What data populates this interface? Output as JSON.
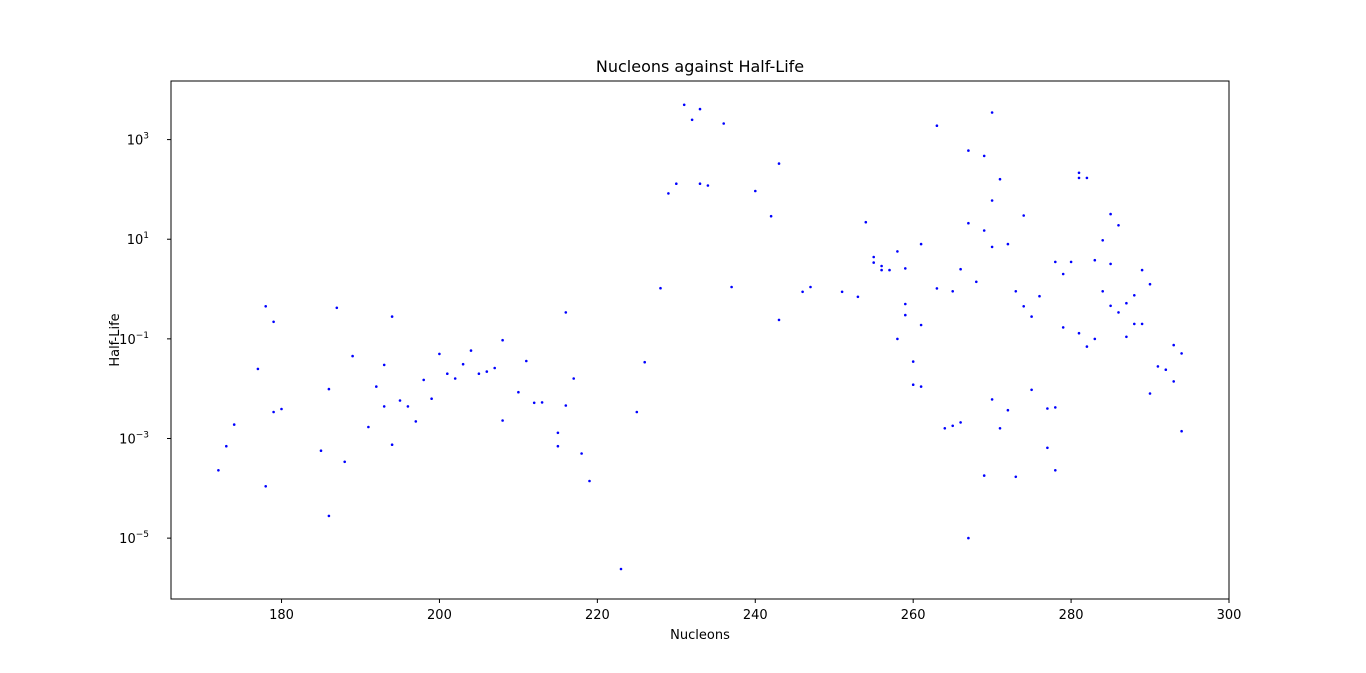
{
  "chart_data": {
    "type": "scatter",
    "title": "Nucleons against Half-Life",
    "xlabel": "Nucleons",
    "ylabel": "Half-Life",
    "xlim": [
      166,
      300
    ],
    "ylim": [
      6e-07,
      15000
    ],
    "yscale": "log",
    "x_ticks": [
      180,
      200,
      220,
      240,
      260,
      280,
      300
    ],
    "y_ticks": [
      {
        "exp": -5,
        "value": 1e-05
      },
      {
        "exp": -3,
        "value": 0.001
      },
      {
        "exp": -1,
        "value": 0.1
      },
      {
        "exp": 1,
        "value": 10
      },
      {
        "exp": 3,
        "value": 1000
      }
    ],
    "grid": false,
    "marker_color": "#0000ff",
    "series": [
      {
        "x": [
          172,
          173,
          174,
          177,
          178,
          178,
          179,
          179,
          180,
          185,
          186,
          186,
          187,
          188,
          189,
          191,
          192,
          193,
          193,
          194,
          194,
          195,
          196,
          197,
          198,
          199,
          200,
          201,
          202,
          203,
          204,
          205,
          206,
          207,
          208,
          208,
          210,
          211,
          212,
          213,
          215,
          215,
          216,
          216,
          217,
          218,
          219,
          223,
          225,
          226,
          228,
          229,
          230,
          231,
          232,
          233,
          233,
          234,
          236,
          237,
          240,
          242,
          243,
          243,
          246,
          247,
          251,
          253,
          254,
          255,
          255,
          256,
          256,
          257,
          258,
          258,
          259,
          259,
          259,
          260,
          260,
          261,
          261,
          261,
          263,
          263,
          264,
          265,
          265,
          266,
          266,
          267,
          267,
          267,
          268,
          269,
          269,
          269,
          270,
          270,
          270,
          270,
          271,
          271,
          272,
          272,
          273,
          273,
          274,
          274,
          275,
          275,
          276,
          277,
          277,
          278,
          278,
          278,
          279,
          279,
          280,
          281,
          281,
          281,
          282,
          282,
          283,
          283,
          284,
          284,
          285,
          285,
          285,
          286,
          286,
          287,
          287,
          288,
          288,
          289,
          289,
          290,
          290,
          291,
          292,
          293,
          293,
          294,
          294
        ],
        "y": [
          0.00023,
          0.0007,
          0.0019,
          0.025,
          0.00011,
          0.45,
          0.22,
          0.0034,
          0.0039,
          0.00057,
          0.0098,
          2.8e-05,
          0.42,
          0.00034,
          0.045,
          0.0017,
          0.011,
          0.03,
          0.0044,
          0.28,
          0.00075,
          0.0058,
          0.0044,
          0.0022,
          0.015,
          0.0063,
          0.05,
          0.02,
          0.016,
          0.031,
          0.058,
          0.02,
          0.022,
          0.026,
          0.094,
          0.0023,
          0.0085,
          0.036,
          0.0052,
          0.0053,
          0.0013,
          0.0007,
          0.34,
          0.0046,
          0.016,
          0.0005,
          0.00014,
          2.4e-06,
          0.0034,
          0.034,
          1.04,
          83,
          130,
          5000,
          2500,
          4100,
          130,
          120,
          2100,
          1.1,
          93,
          29,
          330,
          0.24,
          0.88,
          1.1,
          0.88,
          0.7,
          22,
          4.4,
          3.4,
          2.4,
          2.9,
          2.4,
          5.7,
          0.1,
          2.6,
          0.5,
          0.3,
          0.035,
          0.012,
          8,
          0.19,
          0.011,
          1.03,
          1900,
          0.0016,
          0.9,
          0.0018,
          0.0021,
          2.5,
          600,
          21,
          1e-05,
          1.4,
          15,
          470,
          0.00018,
          3500,
          60,
          7,
          0.0061,
          0.0016,
          160,
          8,
          0.0037,
          0.9,
          0.00017,
          30,
          0.45,
          0.28,
          0.0095,
          0.72,
          0.004,
          0.00065,
          0.0042,
          0.00023,
          3.5,
          0.17,
          2,
          3.5,
          215,
          170,
          0.13,
          170,
          0.07,
          3.8,
          0.1,
          9.5,
          0.9,
          0.46,
          32,
          3.2,
          0.34,
          19,
          0.52,
          0.11,
          0.2,
          0.75,
          0.2,
          2.4,
          0.008,
          1.25,
          0.028,
          0.024,
          0.075,
          0.014,
          0.051,
          0.0014
        ]
      }
    ]
  }
}
